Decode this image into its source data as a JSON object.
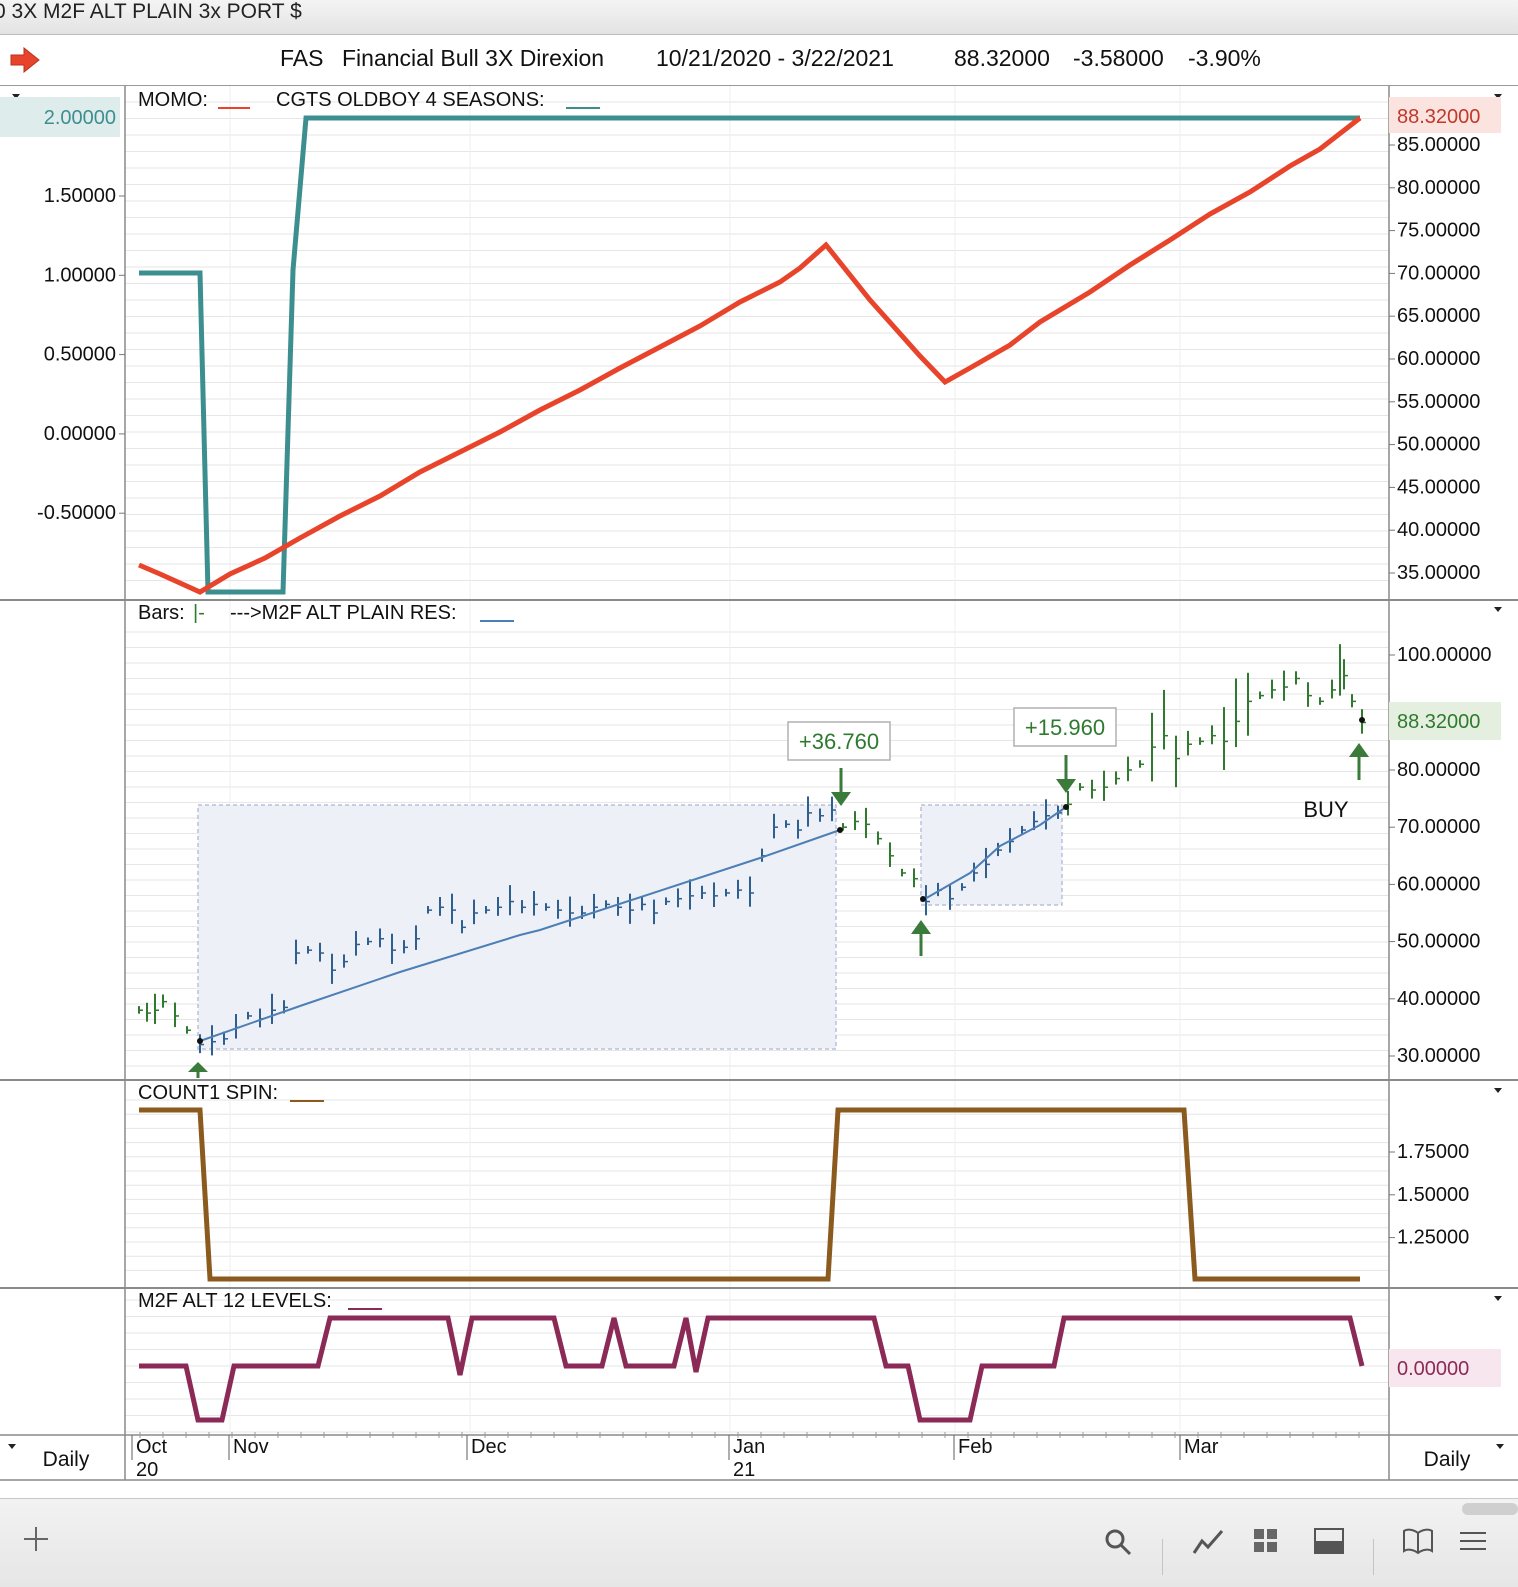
{
  "window": {
    "title": "0 3X M2F ALT PLAIN 3x PORT $"
  },
  "header": {
    "symbol": "FAS",
    "name": "Financial Bull 3X Direxion",
    "date_range": "10/21/2020 - 3/22/2021",
    "last": "88.32000",
    "change": "-3.58000",
    "change_pct": "-3.90%"
  },
  "footer": {
    "period_left": "Daily",
    "period_right": "Daily"
  },
  "x_axis": {
    "months": [
      "Oct",
      "Nov",
      "Dec",
      "Jan",
      "Feb",
      "Mar"
    ],
    "years": [
      "20",
      "21"
    ]
  },
  "panels": {
    "momo": {
      "label_momo": "MOMO:",
      "label_cgts": "CGTS OLDBOY 4 SEASONS:",
      "left_ticks": [
        "2.00000",
        "1.50000",
        "1.00000",
        "0.50000",
        "0.00000",
        "-0.50000"
      ],
      "right_ticks": [
        "85.00000",
        "80.00000",
        "75.00000",
        "70.00000",
        "65.00000",
        "60.00000",
        "55.00000",
        "50.00000",
        "45.00000",
        "40.00000",
        "35.00000"
      ],
      "left_highlight": "2.00000",
      "right_highlight": "88.32000"
    },
    "bars": {
      "label_bars": "Bars:",
      "label_bars_marker": "|-",
      "label_res": "--->M2F ALT PLAIN RES:",
      "right_ticks": [
        "100.00000",
        "80.00000",
        "70.00000",
        "60.00000",
        "50.00000",
        "40.00000",
        "30.00000"
      ],
      "right_highlight": "88.32000",
      "gain1": "+36.760",
      "gain2": "+15.960",
      "buy_label": "BUY"
    },
    "count": {
      "label": "COUNT1 SPIN:",
      "right_ticks": [
        "1.75000",
        "1.50000",
        "1.25000"
      ]
    },
    "levels": {
      "label": "M2F ALT 12 LEVELS:",
      "right_highlight": "0.00000"
    }
  },
  "colors": {
    "momo": "#e8442b",
    "cgts": "#3d8f8f",
    "res_line": "#4b7fb5",
    "bar_up": "#2f7a2f",
    "bar_blue": "#2f5f8f",
    "spin": "#8b5a1e",
    "levels": "#8b2a56",
    "arrow": "#3a7a3a"
  },
  "chart_data": [
    {
      "type": "line",
      "title": "MOMO / CGTS OLDBOY 4 SEASONS",
      "series": [
        {
          "name": "MOMO",
          "axis": "right",
          "x": [
            "2020-10-21",
            "2020-10-30",
            "2020-11-05",
            "2020-11-15",
            "2020-12-01",
            "2020-12-15",
            "2021-01-01",
            "2021-01-15",
            "2021-01-28",
            "2021-02-05",
            "2021-02-20",
            "2021-03-05",
            "2021-03-22"
          ],
          "values": [
            35.0,
            32.0,
            36.0,
            41.0,
            48.0,
            55.0,
            63.0,
            71.0,
            55.0,
            59.0,
            67.0,
            76.0,
            88.32
          ]
        },
        {
          "name": "CGTS OLDBOY 4 SEASONS",
          "axis": "left",
          "x": [
            "2020-10-21",
            "2020-10-28",
            "2020-10-29",
            "2020-11-06",
            "2020-11-07",
            "2020-11-08",
            "2021-03-22"
          ],
          "values": [
            1.0,
            1.0,
            -1.0,
            -1.0,
            1.0,
            2.0,
            2.0
          ]
        }
      ],
      "ylim_left": [
        -0.8,
        2.1
      ],
      "ylim_right": [
        32.0,
        88.5
      ]
    },
    {
      "type": "bar",
      "title": "Bars / M2F ALT PLAIN RES",
      "ohlc_approx_closes": [
        {
          "date": "2020-10-21",
          "close": 37.0
        },
        {
          "date": "2020-10-30",
          "close": 32.0
        },
        {
          "date": "2020-11-09",
          "close": 47.0
        },
        {
          "date": "2020-12-01",
          "close": 54.0
        },
        {
          "date": "2021-01-01",
          "close": 61.0
        },
        {
          "date": "2021-01-12",
          "close": 72.0
        },
        {
          "date": "2021-01-20",
          "close": 70.5
        },
        {
          "date": "2021-01-29",
          "close": 57.0
        },
        {
          "date": "2021-02-10",
          "close": 73.0
        },
        {
          "date": "2021-03-01",
          "close": 86.0
        },
        {
          "date": "2021-03-16",
          "close": 100.0
        },
        {
          "date": "2021-03-22",
          "close": 88.32
        }
      ],
      "annotations": [
        {
          "text": "+36.760",
          "type": "gain",
          "from": "2020-10-30",
          "to": "2021-01-20"
        },
        {
          "text": "+15.960",
          "type": "gain",
          "from": "2021-01-29",
          "to": "2021-02-10"
        },
        {
          "text": "BUY",
          "date": "2021-03-22"
        }
      ],
      "ylim": [
        28.0,
        104.0
      ]
    },
    {
      "type": "line",
      "title": "COUNT1 SPIN",
      "x": [
        "2020-10-21",
        "2020-10-28",
        "2020-10-29",
        "2021-01-19",
        "2021-01-20",
        "2021-03-04",
        "2021-03-05",
        "2021-03-22"
      ],
      "values": [
        2.0,
        2.0,
        1.0,
        1.0,
        2.0,
        2.0,
        1.0,
        1.0
      ],
      "ylim": [
        0.95,
        2.05
      ]
    },
    {
      "type": "line",
      "title": "M2F ALT 12 LEVELS",
      "values_note_scale": "0 at highlighted level",
      "x_index": [
        0,
        6,
        9,
        12,
        22,
        25,
        36,
        40,
        42,
        52,
        56,
        58,
        60,
        62,
        66,
        68,
        69,
        71,
        73,
        86,
        88,
        92,
        96,
        100,
        103,
        110,
        112,
        140,
        142
      ],
      "values": [
        0,
        0,
        -1,
        -1,
        0,
        0,
        1,
        1,
        0,
        1,
        1,
        0,
        1,
        0,
        0,
        1,
        0,
        1,
        1,
        1,
        0,
        0,
        -1,
        -1,
        0,
        0,
        1,
        1,
        0
      ],
      "ylim": [
        -1.1,
        1.1
      ]
    }
  ]
}
